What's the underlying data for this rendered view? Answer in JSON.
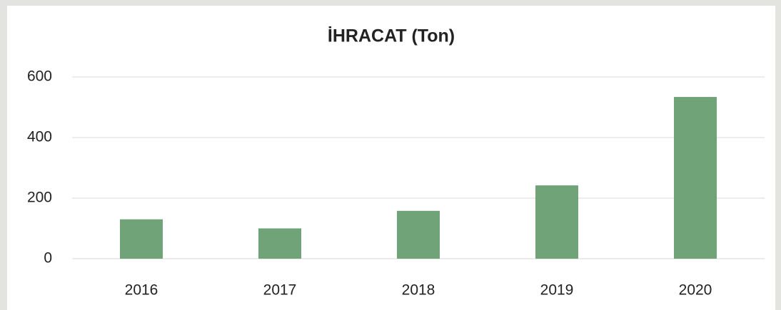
{
  "chart_data": {
    "type": "bar",
    "title": "İHRACAT (Ton)",
    "categories": [
      "2016",
      "2017",
      "2018",
      "2019",
      "2020"
    ],
    "values": [
      130,
      100,
      158,
      242,
      534
    ],
    "color": "#70a378",
    "ylim": [
      0,
      600
    ],
    "yticks": [
      0,
      200,
      400,
      600
    ],
    "grid": true
  }
}
